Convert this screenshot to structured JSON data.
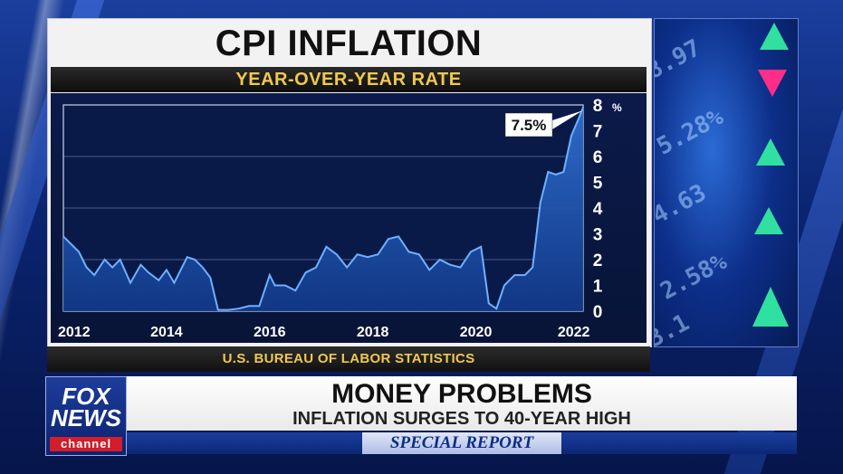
{
  "graphic": {
    "title": "CPI INFLATION",
    "subtitle": "YEAR-OVER-YEAR RATE",
    "source": "U.S. BUREAU OF LABOR STATISTICS"
  },
  "lower_third": {
    "headline": "MONEY PROBLEMS",
    "subhead": "INFLATION SURGES TO 40-YEAR HIGH",
    "show": "SPECIAL REPORT"
  },
  "logo": {
    "line1": "FOX",
    "line2": "NEWS",
    "line3": "channel"
  },
  "colors": {
    "accent_gold": "#f0c850",
    "chart_fill": "#2f6fd0",
    "chart_line": "#6fb0ff",
    "ticker_up": "#2fe0a0",
    "ticker_down": "#ff2e88"
  },
  "chart_data": {
    "type": "area",
    "title": "CPI INFLATION",
    "subtitle": "YEAR-OVER-YEAR RATE",
    "xlabel": "",
    "ylabel": "",
    "y_unit_label": "%",
    "xlim": [
      2012.0,
      2022.08
    ],
    "ylim": [
      0,
      8
    ],
    "x_ticks": [
      "2012",
      "2014",
      "2016",
      "2018",
      "2020",
      "2022"
    ],
    "y_ticks": [
      "0",
      "1",
      "2",
      "3",
      "4",
      "5",
      "6",
      "7",
      "8"
    ],
    "grid": "horizontal",
    "annotation": {
      "text": "7.5%",
      "x": 2022.0,
      "y": 7.5
    },
    "x": [
      2012.0,
      2012.1,
      2012.3,
      2012.45,
      2012.6,
      2012.8,
      2012.95,
      2013.1,
      2013.3,
      2013.5,
      2013.65,
      2013.85,
      2014.0,
      2014.15,
      2014.4,
      2014.55,
      2014.7,
      2014.85,
      2015.0,
      2015.2,
      2015.4,
      2015.6,
      2015.8,
      2016.0,
      2016.1,
      2016.3,
      2016.5,
      2016.7,
      2016.9,
      2017.1,
      2017.3,
      2017.5,
      2017.7,
      2017.9,
      2018.1,
      2018.3,
      2018.5,
      2018.7,
      2018.9,
      2019.1,
      2019.3,
      2019.5,
      2019.7,
      2019.9,
      2020.1,
      2020.25,
      2020.4,
      2020.55,
      2020.75,
      2020.95,
      2021.1,
      2021.25,
      2021.4,
      2021.55,
      2021.7,
      2021.85,
      2022.0,
      2022.08
    ],
    "values": [
      2.9,
      2.7,
      2.3,
      1.7,
      1.4,
      2.0,
      1.7,
      2.0,
      1.1,
      1.8,
      1.5,
      1.2,
      1.6,
      1.1,
      2.1,
      2.0,
      1.7,
      1.3,
      -0.1,
      -0.1,
      0.1,
      0.2,
      0.2,
      1.4,
      1.0,
      1.0,
      0.8,
      1.5,
      1.7,
      2.5,
      2.2,
      1.7,
      2.2,
      2.1,
      2.2,
      2.8,
      2.9,
      2.3,
      2.2,
      1.6,
      2.0,
      1.8,
      1.7,
      2.3,
      2.5,
      0.3,
      0.1,
      1.0,
      1.4,
      1.4,
      1.7,
      4.2,
      5.4,
      5.3,
      5.4,
      6.8,
      7.5,
      7.9
    ]
  }
}
